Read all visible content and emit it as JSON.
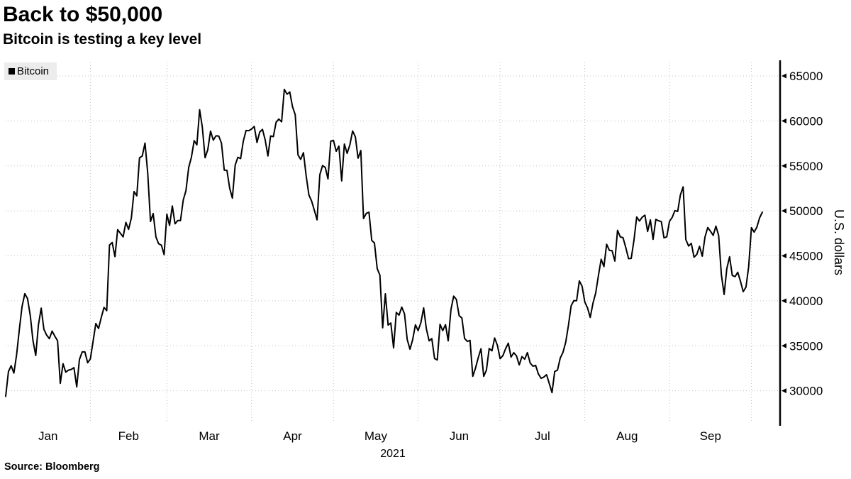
{
  "header": {
    "title": "Back to $50,000",
    "subtitle": "Bitcoin is testing a key level"
  },
  "legend": {
    "items": [
      {
        "label": "Bitcoin",
        "color": "#000000"
      }
    ]
  },
  "footer": {
    "source": "Source:  Bloomberg"
  },
  "chart_data": {
    "type": "line",
    "title": "Back to $50,000",
    "subtitle": "Bitcoin is testing a key level",
    "ylabel": "U.S. dollars",
    "year_label": "2021",
    "x_tick_labels": [
      "Jan",
      "Feb",
      "Mar",
      "Apr",
      "May",
      "Jun",
      "Jul",
      "Aug",
      "Sep"
    ],
    "y_ticks": [
      30000,
      35000,
      40000,
      45000,
      50000,
      55000,
      60000,
      65000
    ],
    "ylim": [
      26500,
      66500
    ],
    "grid": "dotted",
    "grid_color": "#c0c0c0",
    "legend_position": "top-left",
    "cadence": "daily from 2021-01-01 to 2021-10-05",
    "month_lengths": [
      31,
      28,
      31,
      30,
      31,
      30,
      31,
      31,
      30,
      5
    ],
    "series": [
      {
        "name": "Bitcoin",
        "color": "#000000",
        "values": [
          29374,
          32127,
          32782,
          31971,
          33992,
          36824,
          39371,
          40797,
          40254,
          38356,
          35566,
          33922,
          37316,
          39187,
          36825,
          36178,
          35791,
          36630,
          36069,
          35547,
          30825,
          33005,
          32067,
          32289,
          32366,
          32569,
          30432,
          33466,
          34316,
          34318,
          33114,
          33537,
          35510,
          37472,
          36926,
          38144,
          39266,
          38903,
          46196,
          46481,
          44918,
          47909,
          47504,
          47105,
          48717,
          47945,
          49199,
          52149,
          51679,
          55888,
          56099,
          57539,
          54207,
          48824,
          49705,
          47093,
          46339,
          46188,
          45137,
          49631,
          48378,
          50538,
          48561,
          48927,
          48912,
          51206,
          52246,
          54824,
          55963,
          57805,
          57332,
          61243,
          59302,
          55907,
          56804,
          58870,
          57858,
          58346,
          58313,
          57523,
          54529,
          54511,
          52508,
          51415,
          55074,
          55950,
          55821,
          57750,
          58930,
          58918,
          59095,
          59384,
          57603,
          58758,
          59057,
          57900,
          56099,
          58326,
          58254,
          59846,
          60204,
          59893,
          63503,
          62970,
          63216,
          61572,
          60683,
          56216,
          55724,
          56473,
          53906,
          51762,
          51093,
          50050,
          49004,
          54021,
          55033,
          54824,
          53555,
          57750,
          57828,
          56631,
          57200,
          53333,
          57424,
          56396,
          57352,
          58877,
          58232,
          55859,
          56704,
          49150,
          49716,
          49850,
          46716,
          46426,
          43580,
          42849,
          37002,
          40782,
          37304,
          37531,
          34770,
          38705,
          38402,
          39294,
          38556,
          35697,
          34616,
          35678,
          37332,
          36684,
          37575,
          39208,
          36894,
          35551,
          35796,
          33575,
          33416,
          37389,
          36680,
          37338,
          35546,
          39020,
          40516,
          40144,
          38349,
          38092,
          35820,
          35484,
          35600,
          31608,
          32508,
          33678,
          34663,
          31594,
          32287,
          34700,
          34434,
          35868,
          35041,
          33572,
          33897,
          34669,
          35287,
          33746,
          34235,
          33880,
          32877,
          33798,
          33515,
          34240,
          33086,
          32729,
          32820,
          31880,
          31383,
          31520,
          31783,
          30815,
          29790,
          32144,
          32287,
          33634,
          34258,
          35381,
          37237,
          39457,
          40019,
          40016,
          42206,
          41626,
          39878,
          39201,
          38152,
          39747,
          40869,
          42838,
          44614,
          43804,
          46285,
          45598,
          45577,
          44417,
          47835,
          47096,
          47018,
          45927,
          44686,
          44714,
          46760,
          49327,
          48869,
          49284,
          49521,
          47706,
          48994,
          46843,
          49058,
          48902,
          48806,
          46998,
          47112,
          48830,
          49288,
          50025,
          49935,
          51769,
          52666,
          46811,
          46091,
          46391,
          44850,
          45161,
          46057,
          44961,
          47095,
          48147,
          47740,
          47276,
          48306,
          47249,
          42896,
          40710,
          43580,
          44888,
          42815,
          42690,
          43169,
          42150,
          41018,
          41522,
          43790,
          48141,
          47634,
          48196,
          49220,
          49850
        ]
      }
    ]
  }
}
